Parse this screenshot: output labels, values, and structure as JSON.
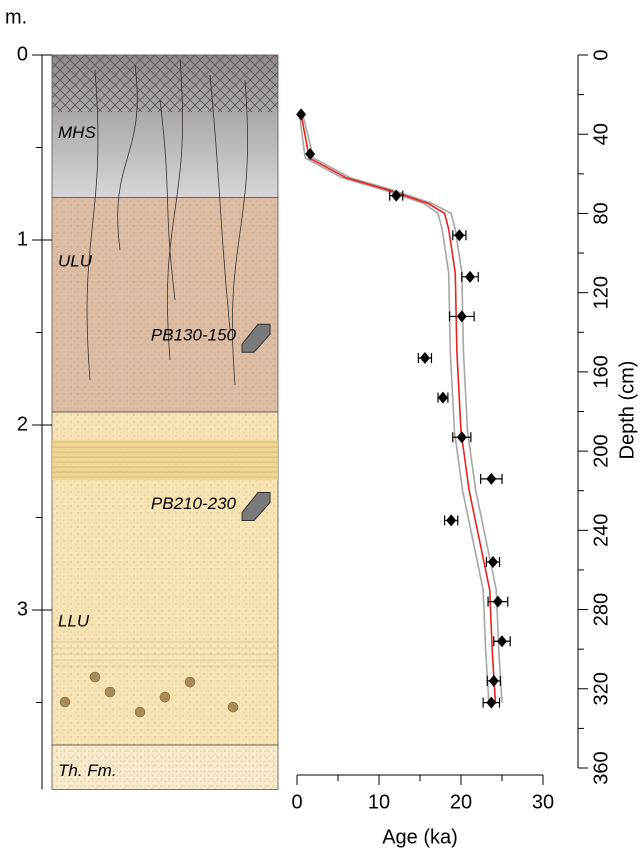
{
  "chart_data": [
    {
      "type": "column",
      "ylabel": "m.",
      "ylim": [
        0,
        3.97
      ],
      "yticks": [
        0,
        1,
        2,
        3
      ],
      "layers": [
        {
          "name": "MHS",
          "top": 0,
          "bottom": 0.77,
          "color": "#b5b2b6"
        },
        {
          "name": "ULU",
          "top": 0.77,
          "bottom": 1.93,
          "color": "#dcbca3"
        },
        {
          "name": "LLU",
          "top": 1.93,
          "bottom": 3.73,
          "color": "#f8e3b3"
        },
        {
          "name": "Th. Fm.",
          "top": 3.73,
          "bottom": 3.97,
          "color": "#f8ebcc"
        }
      ],
      "samples": [
        {
          "label": "PB130-150",
          "depth": 1.52
        },
        {
          "label": "PB210-230",
          "depth": 2.43
        }
      ]
    },
    {
      "type": "scatter",
      "xlabel": "Age (ka)",
      "ylabel": "Depth (cm)",
      "xlim": [
        0,
        30
      ],
      "xticks": [
        0,
        10,
        20,
        30
      ],
      "ylim": [
        0,
        360
      ],
      "yticks": [
        0,
        40,
        80,
        120,
        160,
        200,
        240,
        280,
        320,
        360
      ],
      "points": {
        "color": "#000000",
        "x": [
          0.5,
          1.6,
          12.1,
          19.8,
          21.1,
          20.1,
          15.6,
          17.8,
          20.1,
          23.7,
          18.8,
          23.9,
          24.5,
          25,
          24,
          23.7
        ],
        "y": [
          30,
          50,
          71,
          91,
          112,
          132,
          153,
          173,
          193,
          214,
          235,
          256,
          276,
          296,
          316,
          327
        ],
        "xerr": [
          null,
          null,
          0.8,
          0.8,
          1,
          1.5,
          0.8,
          0.6,
          1.1,
          1.3,
          0.8,
          0.8,
          1.2,
          1,
          0.8,
          1
        ]
      },
      "lines": [
        {
          "color": "#a6a6a6",
          "x": [
            0.3,
            1,
            5.5,
            10.5,
            15.5,
            17.2,
            17.7,
            18.5,
            18.7,
            19.2,
            20.2,
            21.7,
            22.7,
            23,
            23.4
          ],
          "y": [
            30,
            52,
            62,
            68,
            75,
            80,
            88,
            110,
            150,
            190,
            220,
            250,
            270,
            300,
            327
          ]
        },
        {
          "color": "#a6a6a6",
          "x": [
            0.7,
            2,
            6.5,
            11.5,
            16.5,
            18.8,
            19.3,
            20.1,
            20.3,
            20.8,
            21.8,
            23.3,
            24.3,
            24.6,
            25
          ],
          "y": [
            30,
            52,
            62,
            68,
            75,
            80,
            88,
            110,
            150,
            190,
            220,
            250,
            270,
            300,
            327
          ]
        },
        {
          "color": "#e8231f",
          "x": [
            0.5,
            1.5,
            6,
            11,
            16,
            18,
            18.5,
            19.3,
            19.5,
            20,
            21,
            22.5,
            23.5,
            23.8,
            24.2
          ],
          "y": [
            30,
            52,
            62,
            68,
            75,
            80,
            88,
            110,
            150,
            190,
            220,
            250,
            270,
            300,
            327
          ]
        }
      ]
    }
  ]
}
